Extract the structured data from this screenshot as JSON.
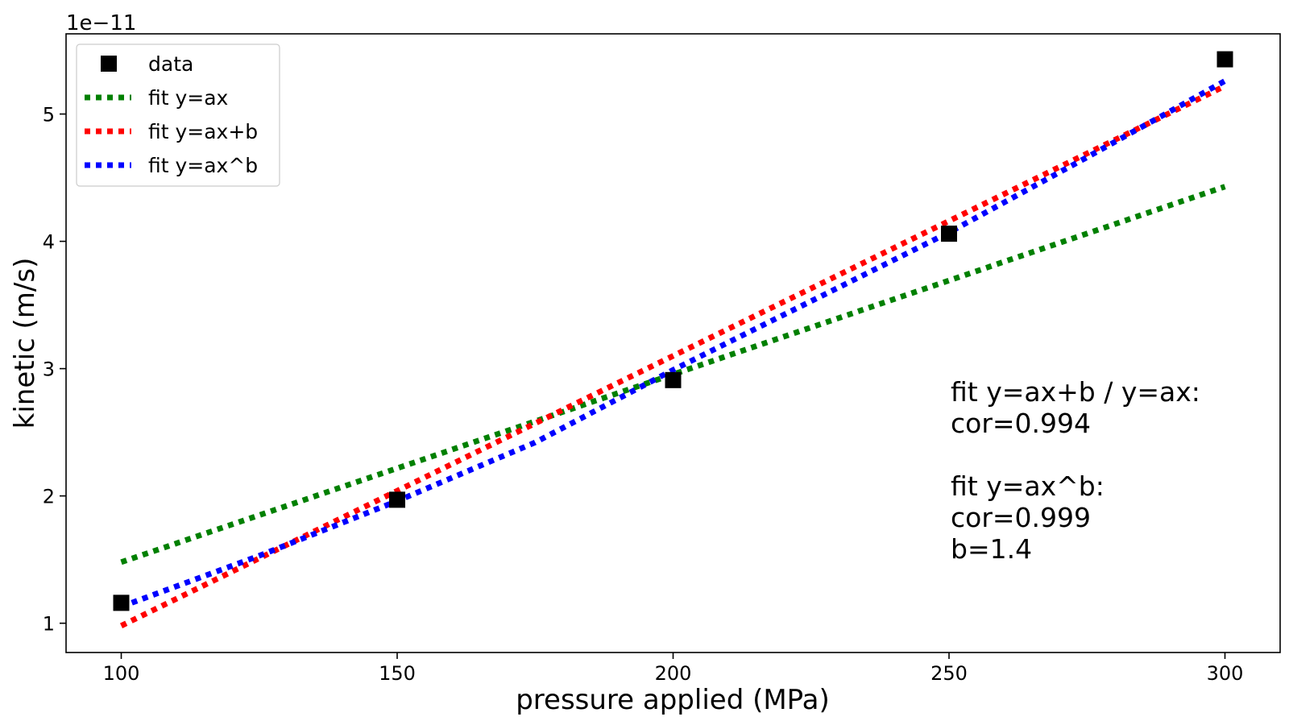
{
  "chart_data": {
    "type": "line",
    "title": "",
    "xlabel": "pressure applied (MPa)",
    "ylabel": "kinetic (m/s)",
    "offset_text": "1e−11",
    "xlim": [
      90,
      310
    ],
    "ylim": [
      0.77,
      5.63
    ],
    "xticks": [
      100,
      150,
      200,
      250,
      300
    ],
    "xtick_labels": [
      "100",
      "150",
      "200",
      "250",
      "300"
    ],
    "yticks": [
      1,
      2,
      3,
      4,
      5
    ],
    "ytick_labels": [
      "1",
      "2",
      "3",
      "4",
      "5"
    ],
    "grid": false,
    "legend_position": "upper-left",
    "series": [
      {
        "name": "data",
        "kind": "scatter",
        "marker": "square",
        "color": "#000000",
        "x": [
          100,
          150,
          200,
          250,
          300
        ],
        "y": [
          1.16,
          1.97,
          2.91,
          4.06,
          5.43
        ]
      },
      {
        "name": "fit y=ax",
        "kind": "line",
        "style": "dotted",
        "color": "#008000",
        "x": [
          100,
          300
        ],
        "y": [
          1.48,
          4.43
        ]
      },
      {
        "name": "fit y=ax+b",
        "kind": "line",
        "style": "dotted",
        "color": "#ff0000",
        "x": [
          100,
          300
        ],
        "y": [
          0.98,
          5.22
        ]
      },
      {
        "name": "fit y=ax^b",
        "kind": "line",
        "style": "dotted",
        "color": "#0000ff",
        "x": [
          100,
          125,
          150,
          175,
          200,
          225,
          250,
          275,
          300
        ],
        "y": [
          1.13,
          1.53,
          1.96,
          2.42,
          2.99,
          3.53,
          4.07,
          4.66,
          5.26
        ]
      }
    ],
    "annotations": [
      "fit y=ax+b / y=ax:",
      "cor=0.994",
      "",
      "fit y=ax^b:",
      "cor=0.999",
      "b=1.4"
    ]
  }
}
